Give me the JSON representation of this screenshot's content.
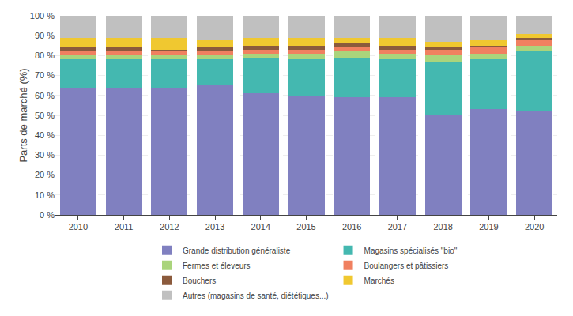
{
  "chart_data": {
    "type": "bar",
    "stacked": true,
    "x": [
      2010,
      2011,
      2012,
      2013,
      2014,
      2015,
      2016,
      2017,
      2018,
      2019,
      2020
    ],
    "series": [
      {
        "name": "Grande distribution généraliste",
        "color": "#8080c0",
        "values": [
          64,
          64,
          64,
          65,
          61,
          60,
          59,
          59,
          50,
          53,
          52
        ]
      },
      {
        "name": "Magasins spécialisés \"bio\"",
        "color": "#44b8b0",
        "values": [
          14,
          14,
          14,
          13,
          18,
          18,
          20,
          19,
          27,
          25,
          30
        ]
      },
      {
        "name": "Fermes et éleveurs",
        "color": "#aad47c",
        "values": [
          2,
          2,
          2,
          2,
          2,
          3,
          3,
          3,
          3,
          3,
          3
        ]
      },
      {
        "name": "Boulangers et pâtissiers",
        "color": "#f08060",
        "values": [
          2,
          2,
          2,
          2,
          2,
          2,
          2,
          2,
          3,
          3,
          3
        ]
      },
      {
        "name": "Bouchers",
        "color": "#8b5a3c",
        "values": [
          2,
          2,
          1,
          2,
          2,
          2,
          2,
          2,
          1,
          1,
          1
        ]
      },
      {
        "name": "Marchés",
        "color": "#f0c830",
        "values": [
          5,
          5,
          6,
          4,
          4,
          4,
          3,
          4,
          3,
          3,
          2
        ]
      },
      {
        "name": "Autres (magasins de santé, diététiques...)",
        "color": "#c0c0c0",
        "values": [
          11,
          11,
          11,
          12,
          11,
          11,
          11,
          11,
          13,
          12,
          9
        ]
      }
    ],
    "ylabel": "Parts de marché (%)",
    "xlim": [
      2009.5,
      2020.5
    ],
    "xticks": [
      2010,
      2011,
      2012,
      2013,
      2014,
      2015,
      2016,
      2017,
      2018,
      2019,
      2020
    ],
    "ylim": [
      0,
      100
    ],
    "yticks": [
      {
        "value": 0,
        "label": "0 %"
      },
      {
        "value": 10,
        "label": "10 %"
      },
      {
        "value": 20,
        "label": "20 %"
      },
      {
        "value": 30,
        "label": "30 %"
      },
      {
        "value": 40,
        "label": "40 %"
      },
      {
        "value": 50,
        "label": "50 %"
      },
      {
        "value": 60,
        "label": "60 %"
      },
      {
        "value": 70,
        "label": "70 %"
      },
      {
        "value": 80,
        "label": "80 %"
      },
      {
        "value": 90,
        "label": "90 %"
      },
      {
        "value": 100,
        "label": "100 %"
      }
    ],
    "grid": true,
    "legend": "bottom"
  }
}
